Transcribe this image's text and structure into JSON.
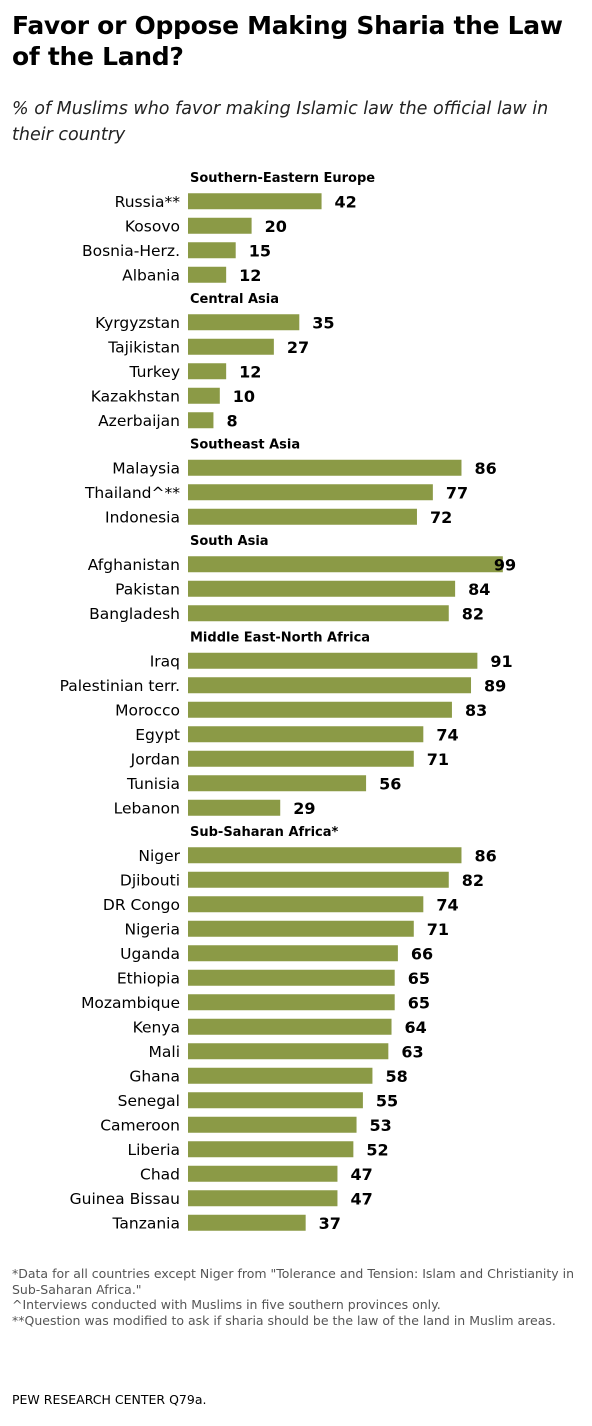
{
  "title": "Favor or Oppose Making Sharia the Law of the Land?",
  "subtitle": "% of Muslims who favor making Islamic law the official law in their country",
  "notes": [
    "*Data for all countries except Niger from \"Tolerance and Tension: Islam and Christianity in Sub-Saharan Africa.\"",
    "^Interviews conducted with Muslims in five southern provinces only.",
    "**Question was modified to ask if sharia should be the law of the land in Muslim areas."
  ],
  "source": "PEW RESEARCH CENTER Q79a.",
  "colors": {
    "bar": "#8b9a46"
  },
  "chart_data": {
    "type": "bar",
    "orientation": "horizontal",
    "xlim": [
      0,
      100
    ],
    "grid": false,
    "groups": [
      {
        "name": "Southern-Eastern  Europe",
        "categories": [
          "Russia**",
          "Kosovo",
          "Bosnia-Herz.",
          "Albania"
        ],
        "values": [
          42,
          20,
          15,
          12
        ]
      },
      {
        "name": "Central Asia",
        "categories": [
          "Kyrgyzstan",
          "Tajikistan",
          "Turkey",
          "Kazakhstan",
          "Azerbaijan"
        ],
        "values": [
          35,
          27,
          12,
          10,
          8
        ]
      },
      {
        "name": "Southeast  Asia",
        "categories": [
          "Malaysia",
          "Thailand^**",
          "Indonesia"
        ],
        "values": [
          86,
          77,
          72
        ]
      },
      {
        "name": "South Asia",
        "categories": [
          "Afghanistan",
          "Pakistan",
          "Bangladesh"
        ],
        "values": [
          99,
          84,
          82
        ]
      },
      {
        "name": "Middle East-North  Africa",
        "categories": [
          "Iraq",
          "Palestinian terr.",
          "Morocco",
          "Egypt",
          "Jordan",
          "Tunisia",
          "Lebanon"
        ],
        "values": [
          91,
          89,
          83,
          74,
          71,
          56,
          29
        ]
      },
      {
        "name": "Sub-Saharan  Africa*",
        "categories": [
          "Niger",
          "Djibouti",
          "DR Congo",
          "Nigeria",
          "Uganda",
          "Ethiopia",
          "Mozambique",
          "Kenya",
          "Mali",
          "Ghana",
          "Senegal",
          "Cameroon",
          "Liberia",
          "Chad",
          "Guinea Bissau",
          "Tanzania"
        ],
        "values": [
          86,
          82,
          74,
          71,
          66,
          65,
          65,
          64,
          63,
          58,
          55,
          53,
          52,
          47,
          47,
          37
        ]
      }
    ]
  }
}
